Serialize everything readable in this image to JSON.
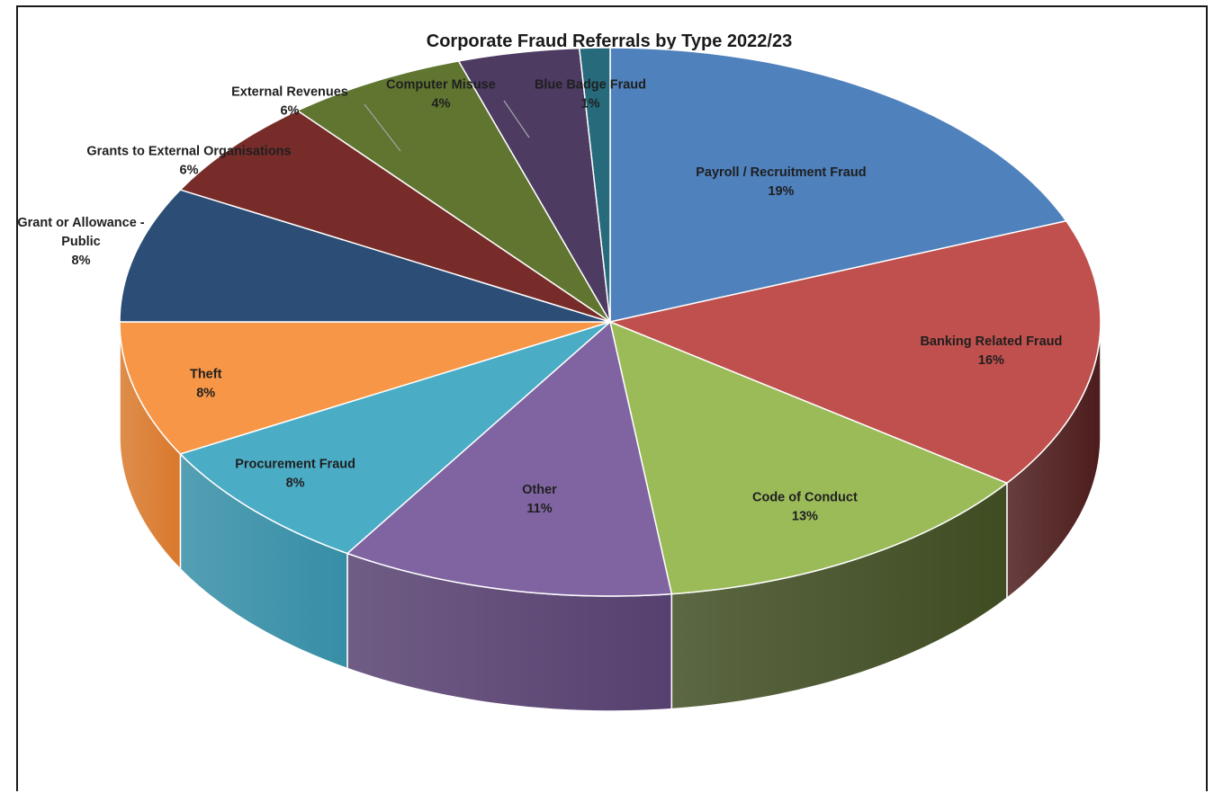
{
  "chart_data": {
    "type": "pie",
    "variant": "3d-exploded-perspective",
    "title": "Corporate Fraud Referrals by Type 2022/23",
    "legend": "none",
    "slices": [
      {
        "label": "Payroll / Recruitment Fraud",
        "pct_label": "19%",
        "value": 19,
        "color": "#4f81bd",
        "side_color": "#3a6293"
      },
      {
        "label": "Banking Related Fraud",
        "pct_label": "16%",
        "value": 16,
        "color": "#c0504d",
        "side_color": "#4d1c1c"
      },
      {
        "label": "Code of Conduct",
        "pct_label": "13%",
        "value": 13,
        "color": "#9bbb59",
        "side_color": "#3f4c22"
      },
      {
        "label": "Other",
        "pct_label": "11%",
        "value": 11,
        "color": "#8064a2",
        "side_color": "#56406f"
      },
      {
        "label": "Procurement Fraud",
        "pct_label": "8%",
        "value": 8,
        "color": "#4bacc6",
        "side_color": "#368ea6"
      },
      {
        "label": "Theft",
        "pct_label": "8%",
        "value": 8,
        "color": "#f79646",
        "side_color": "#d9792c"
      },
      {
        "label": "Grant or Allowance - Public",
        "pct_label": "8%",
        "value": 8,
        "color": "#2c4d75",
        "side_color": "#1e3552"
      },
      {
        "label": "Grants to External Organisations",
        "pct_label": "6%",
        "value": 6,
        "color": "#772c2a",
        "side_color": "#4f1d1b"
      },
      {
        "label": "External Revenues",
        "pct_label": "6%",
        "value": 6,
        "color": "#5f7530",
        "side_color": "#3f4e20"
      },
      {
        "label": "Computer Misuse",
        "pct_label": "4%",
        "value": 4,
        "color": "#4d3b62",
        "side_color": "#33273f"
      },
      {
        "label": "Blue Badge Fraud",
        "pct_label": "1%",
        "value": 1,
        "color": "#276a7c",
        "side_color": "#1b4a57"
      }
    ]
  }
}
